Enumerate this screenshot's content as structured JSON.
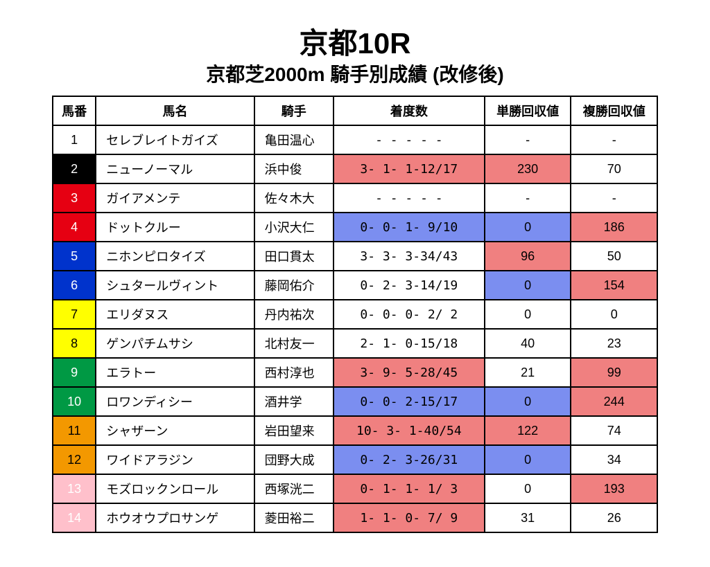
{
  "title": {
    "main": "京都10R",
    "sub": "京都芝2000m 騎手別成績 (改修後)"
  },
  "headers": {
    "num": "馬番",
    "name": "馬名",
    "jockey": "騎手",
    "record": "着度数",
    "win": "単勝回収値",
    "place": "複勝回収値"
  },
  "colors": {
    "white": "#ffffff",
    "black": "#000000",
    "red": "#e60012",
    "blue": "#0033cc",
    "yellow": "#ffff00",
    "green": "#009944",
    "orange": "#f39800",
    "pink": "#ffc0cb",
    "hi_red": "#f08080",
    "hi_blue": "#7b8ef0"
  },
  "rows": [
    {
      "num": "1",
      "num_bg": "white",
      "num_fg": "black",
      "name": "セレブレイトガイズ",
      "jockey": "亀田温心",
      "record": "-  -  -  -  -",
      "record_bg": "white",
      "win": "-",
      "win_bg": "white",
      "place": "-",
      "place_bg": "white"
    },
    {
      "num": "2",
      "num_bg": "black",
      "num_fg": "white",
      "name": "ニューノーマル",
      "jockey": "浜中俊",
      "record": "3- 1- 1-12/17",
      "record_bg": "hi_red",
      "win": "230",
      "win_bg": "hi_red",
      "place": "70",
      "place_bg": "white"
    },
    {
      "num": "3",
      "num_bg": "red",
      "num_fg": "white",
      "name": "ガイアメンテ",
      "jockey": "佐々木大",
      "record": "-  -  -  -  -",
      "record_bg": "white",
      "win": "-",
      "win_bg": "white",
      "place": "-",
      "place_bg": "white"
    },
    {
      "num": "4",
      "num_bg": "red",
      "num_fg": "white",
      "name": "ドットクルー",
      "jockey": "小沢大仁",
      "record": "0- 0- 1- 9/10",
      "record_bg": "hi_blue",
      "win": "0",
      "win_bg": "hi_blue",
      "place": "186",
      "place_bg": "hi_red"
    },
    {
      "num": "5",
      "num_bg": "blue",
      "num_fg": "white",
      "name": "ニホンピロタイズ",
      "jockey": "田口貫太",
      "record": "3- 3- 3-34/43",
      "record_bg": "white",
      "win": "96",
      "win_bg": "hi_red",
      "place": "50",
      "place_bg": "white"
    },
    {
      "num": "6",
      "num_bg": "blue",
      "num_fg": "white",
      "name": "シュタールヴィント",
      "jockey": "藤岡佑介",
      "record": "0- 2- 3-14/19",
      "record_bg": "white",
      "win": "0",
      "win_bg": "hi_blue",
      "place": "154",
      "place_bg": "hi_red"
    },
    {
      "num": "7",
      "num_bg": "yellow",
      "num_fg": "black",
      "name": "エリダヌス",
      "jockey": "丹内祐次",
      "record": "0- 0- 0- 2/ 2",
      "record_bg": "white",
      "win": "0",
      "win_bg": "white",
      "place": "0",
      "place_bg": "white"
    },
    {
      "num": "8",
      "num_bg": "yellow",
      "num_fg": "black",
      "name": "ゲンパチムサシ",
      "jockey": "北村友一",
      "record": "2- 1- 0-15/18",
      "record_bg": "white",
      "win": "40",
      "win_bg": "white",
      "place": "23",
      "place_bg": "white"
    },
    {
      "num": "9",
      "num_bg": "green",
      "num_fg": "white",
      "name": "エラトー",
      "jockey": "西村淳也",
      "record": "3- 9- 5-28/45",
      "record_bg": "hi_red",
      "win": "21",
      "win_bg": "white",
      "place": "99",
      "place_bg": "hi_red"
    },
    {
      "num": "10",
      "num_bg": "green",
      "num_fg": "white",
      "name": "ロワンディシー",
      "jockey": "酒井学",
      "record": "0- 0- 2-15/17",
      "record_bg": "hi_blue",
      "win": "0",
      "win_bg": "hi_blue",
      "place": "244",
      "place_bg": "hi_red"
    },
    {
      "num": "11",
      "num_bg": "orange",
      "num_fg": "black",
      "name": "シャザーン",
      "jockey": "岩田望来",
      "record": "10- 3- 1-40/54",
      "record_bg": "hi_red",
      "win": "122",
      "win_bg": "hi_red",
      "place": "74",
      "place_bg": "white"
    },
    {
      "num": "12",
      "num_bg": "orange",
      "num_fg": "black",
      "name": "ワイドアラジン",
      "jockey": "団野大成",
      "record": "0- 2- 3-26/31",
      "record_bg": "hi_blue",
      "win": "0",
      "win_bg": "hi_blue",
      "place": "34",
      "place_bg": "white"
    },
    {
      "num": "13",
      "num_bg": "pink",
      "num_fg": "white",
      "name": "モズロックンロール",
      "jockey": "西塚洸二",
      "record": "0- 1- 1- 1/ 3",
      "record_bg": "hi_red",
      "win": "0",
      "win_bg": "white",
      "place": "193",
      "place_bg": "hi_red"
    },
    {
      "num": "14",
      "num_bg": "pink",
      "num_fg": "white",
      "name": "ホウオウプロサンゲ",
      "jockey": "菱田裕二",
      "record": "1- 1- 0- 7/ 9",
      "record_bg": "hi_red",
      "win": "31",
      "win_bg": "white",
      "place": "26",
      "place_bg": "white"
    }
  ]
}
